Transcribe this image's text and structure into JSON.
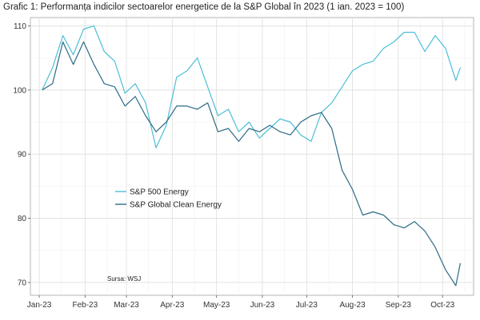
{
  "title": "Grafic 1: Performanța indicilor sectoarelor energetice de la S&P Global în 2023 (1 ian. 2023 = 100)",
  "source": "Sursa: WSJ",
  "chart_data": {
    "type": "line",
    "title": "Grafic 1: Performanța indicilor sectoarelor energetice de la S&P Global în 2023 (1 ian. 2023 = 100)",
    "xlabel": "",
    "ylabel": "",
    "x_ticks": [
      "Jan-23",
      "Feb-23",
      "Mar-23",
      "Apr-23",
      "May-23",
      "Jun-23",
      "Jul-23",
      "Aug-23",
      "Sep-23",
      "Oct-23"
    ],
    "y_ticks": [
      70,
      80,
      90,
      100,
      110
    ],
    "xlim": [
      "2022-12-26",
      "2023-10-22"
    ],
    "ylim": [
      68,
      111.3
    ],
    "grid": true,
    "legend_position": "center-left",
    "x": [
      "2023-01-03",
      "2023-01-10",
      "2023-01-17",
      "2023-01-24",
      "2023-01-31",
      "2023-02-07",
      "2023-02-14",
      "2023-02-21",
      "2023-02-28",
      "2023-03-07",
      "2023-03-14",
      "2023-03-21",
      "2023-03-28",
      "2023-04-04",
      "2023-04-11",
      "2023-04-18",
      "2023-04-25",
      "2023-05-02",
      "2023-05-09",
      "2023-05-16",
      "2023-05-23",
      "2023-05-30",
      "2023-06-06",
      "2023-06-13",
      "2023-06-20",
      "2023-06-27",
      "2023-07-04",
      "2023-07-11",
      "2023-07-18",
      "2023-07-25",
      "2023-08-01",
      "2023-08-08",
      "2023-08-15",
      "2023-08-22",
      "2023-08-29",
      "2023-09-05",
      "2023-09-12",
      "2023-09-19",
      "2023-09-26",
      "2023-10-03",
      "2023-10-10",
      "2023-10-13"
    ],
    "series": [
      {
        "name": "S&P 500 Energy",
        "color": "#4dbed7",
        "values": [
          100,
          103.5,
          108.5,
          105.5,
          109.5,
          110,
          106,
          104.5,
          99.5,
          101,
          98,
          91,
          94.5,
          102,
          103,
          105,
          100.5,
          96,
          97,
          93.5,
          95,
          92.5,
          94,
          95.5,
          95,
          93,
          92,
          96.5,
          98,
          100.5,
          103,
          104,
          104.5,
          106.5,
          107.5,
          109,
          109,
          106,
          108.5,
          106.5,
          101.5,
          103.5
        ]
      },
      {
        "name": "S&P Global Clean Energy",
        "color": "#2c6b85",
        "values": [
          100,
          101,
          107.5,
          104,
          107.5,
          104,
          101,
          100.5,
          97.5,
          99,
          96,
          93.5,
          95,
          97.5,
          97.5,
          97,
          98,
          93.5,
          94,
          92,
          94,
          93.5,
          94.5,
          93.5,
          93,
          95,
          96,
          96.5,
          94,
          87.5,
          84.5,
          80.5,
          81,
          80.5,
          79,
          78.5,
          79.5,
          78,
          75.5,
          72,
          69.5,
          73
        ]
      }
    ]
  }
}
